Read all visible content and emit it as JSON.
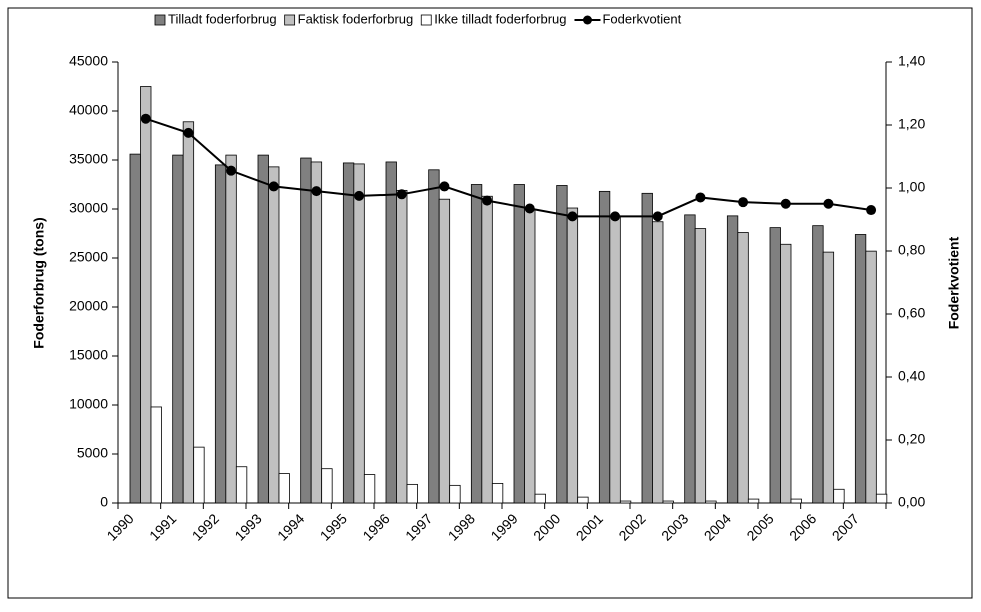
{
  "chart_data": {
    "type": "bar",
    "categories": [
      "1990",
      "1991",
      "1992",
      "1993",
      "1994",
      "1995",
      "1996",
      "1997",
      "1998",
      "1999",
      "2000",
      "2001",
      "2002",
      "2003",
      "2004",
      "2005",
      "2006",
      "2007"
    ],
    "series": [
      {
        "name": "Tilladt foderforbrug",
        "type": "bar",
        "color": "#808080",
        "values": [
          35600,
          35500,
          34500,
          35500,
          35200,
          34700,
          34800,
          34000,
          32500,
          32500,
          32400,
          31800,
          31600,
          29400,
          29300,
          28100,
          28300,
          27400
        ]
      },
      {
        "name": "Faktisk foderforbrug",
        "type": "bar",
        "color": "#c0c0c0",
        "values": [
          42500,
          38900,
          35500,
          34300,
          34800,
          34600,
          31900,
          31000,
          31300,
          30000,
          30100,
          29300,
          28700,
          28000,
          27600,
          26400,
          25600,
          25700
        ]
      },
      {
        "name": "Ikke tilladt foderforbrug",
        "type": "bar",
        "color": "#ffffff",
        "values": [
          9800,
          5700,
          3700,
          3000,
          3500,
          2900,
          1900,
          1800,
          2000,
          900,
          600,
          200,
          200,
          200,
          400,
          400,
          1400,
          900
        ]
      },
      {
        "name": "Foderkvotient",
        "type": "line",
        "axis": "y2",
        "color": "#000000",
        "values": [
          1.22,
          1.175,
          1.055,
          1.005,
          0.99,
          0.975,
          0.98,
          1.005,
          0.96,
          0.935,
          0.91,
          0.91,
          0.91,
          0.97,
          0.955,
          0.95,
          0.95,
          0.93
        ]
      }
    ],
    "ylabel": "Foderforbrug (tons)",
    "y2label": "Foderkvotient",
    "ylim": [
      0,
      45000
    ],
    "yticks": [
      0,
      5000,
      10000,
      15000,
      20000,
      25000,
      30000,
      35000,
      40000,
      45000
    ],
    "y2lim": [
      0,
      1.4
    ],
    "y2ticks": [
      {
        "value": 0,
        "label": "0,00"
      },
      {
        "value": 0.2,
        "label": "0,20"
      },
      {
        "value": 0.4,
        "label": "0,40"
      },
      {
        "value": 0.6,
        "label": "0,60"
      },
      {
        "value": 0.8,
        "label": "0,80"
      },
      {
        "value": 1.0,
        "label": "1,00"
      },
      {
        "value": 1.2,
        "label": "1,20"
      },
      {
        "value": 1.4,
        "label": "1,40"
      }
    ],
    "legend": "top"
  }
}
